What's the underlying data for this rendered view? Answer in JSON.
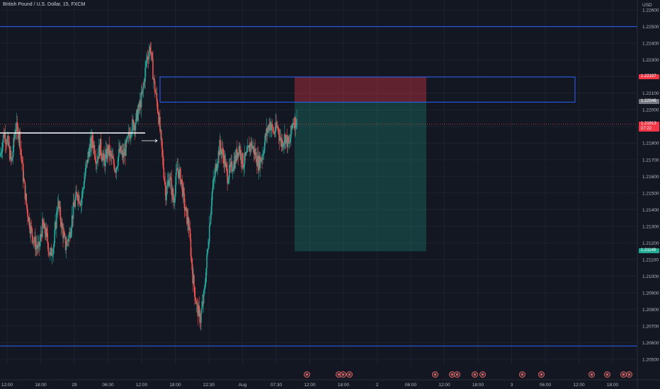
{
  "header": {
    "title": "British Pound / U.S. Dollar, 15, FXCM"
  },
  "price_axis": {
    "currency": "USD",
    "ticks": [
      "1.22600",
      "1.22500",
      "1.22400",
      "1.22300",
      "1.22200",
      "1.22100",
      "1.22000",
      "1.21900",
      "1.21800",
      "1.21700",
      "1.21600",
      "1.21500",
      "1.21400",
      "1.21300",
      "1.21200",
      "1.21100",
      "1.21000",
      "1.20900",
      "1.20800",
      "1.20700",
      "1.20600",
      "1.20500"
    ]
  },
  "time_axis": {
    "ticks": [
      "12:00",
      "18:00",
      "29",
      "06:00",
      "12:00",
      "18:00",
      "22:30",
      "Aug",
      "07:30",
      "12:00",
      "18:00",
      "2",
      "06:00",
      "12:00",
      "18:00",
      "3",
      "06:00",
      "12:00",
      "18:00"
    ]
  },
  "price_tags": {
    "stop": {
      "text": "1.22197",
      "color": "#f23645"
    },
    "entry": {
      "text": "1.22046",
      "color": "#787b86"
    },
    "current_price": {
      "text": "1.21913",
      "color": "#f23645"
    },
    "countdown": {
      "text": "07:22"
    },
    "target": {
      "text": "1.21149",
      "color": "#22ab94"
    }
  },
  "chart_data": {
    "type": "candlestick",
    "symbol": "GBPUSD",
    "interval": "15",
    "ylim": [
      1.2047,
      1.2266
    ],
    "horizontal_levels": [
      1.225,
      1.2058
    ],
    "supply_zone": {
      "top": 1.22197,
      "bottom": 1.22046
    },
    "position": {
      "side": "short",
      "entry": 1.22046,
      "stop": 1.22197,
      "target": 1.21149
    },
    "last_price": 1.21913,
    "colors": {
      "up": "#26a69a",
      "down": "#ef5350",
      "level": "#2962ff",
      "grid": "#1e222d",
      "stop_zone": "#f23645",
      "target_zone": "#22ab94"
    },
    "price_path": [
      1.2172,
      1.2186,
      1.218,
      1.2168,
      1.219,
      1.2185,
      1.216,
      1.214,
      1.2128,
      1.212,
      1.2116,
      1.213,
      1.2125,
      1.2112,
      1.212,
      1.2145,
      1.213,
      1.2118,
      1.2125,
      1.214,
      1.215,
      1.2145,
      1.216,
      1.2175,
      1.2182,
      1.217,
      1.2178,
      1.2168,
      1.2176,
      1.217,
      1.2165,
      1.2175,
      1.2172,
      1.218,
      1.219,
      1.2192,
      1.22,
      1.221,
      1.223,
      1.2238,
      1.2215,
      1.22,
      1.2175,
      1.215,
      1.216,
      1.2145,
      1.2165,
      1.2158,
      1.214,
      1.213,
      1.21,
      1.2082,
      1.2074,
      1.209,
      1.212,
      1.215,
      1.2165,
      1.2178,
      1.2172,
      1.216,
      1.2165,
      1.217,
      1.2178,
      1.2168,
      1.2172,
      1.218,
      1.2175,
      1.2168,
      1.2172,
      1.2185,
      1.2192,
      1.2186,
      1.219,
      1.218,
      1.2184,
      1.2178,
      1.2194,
      1.2192
    ]
  }
}
